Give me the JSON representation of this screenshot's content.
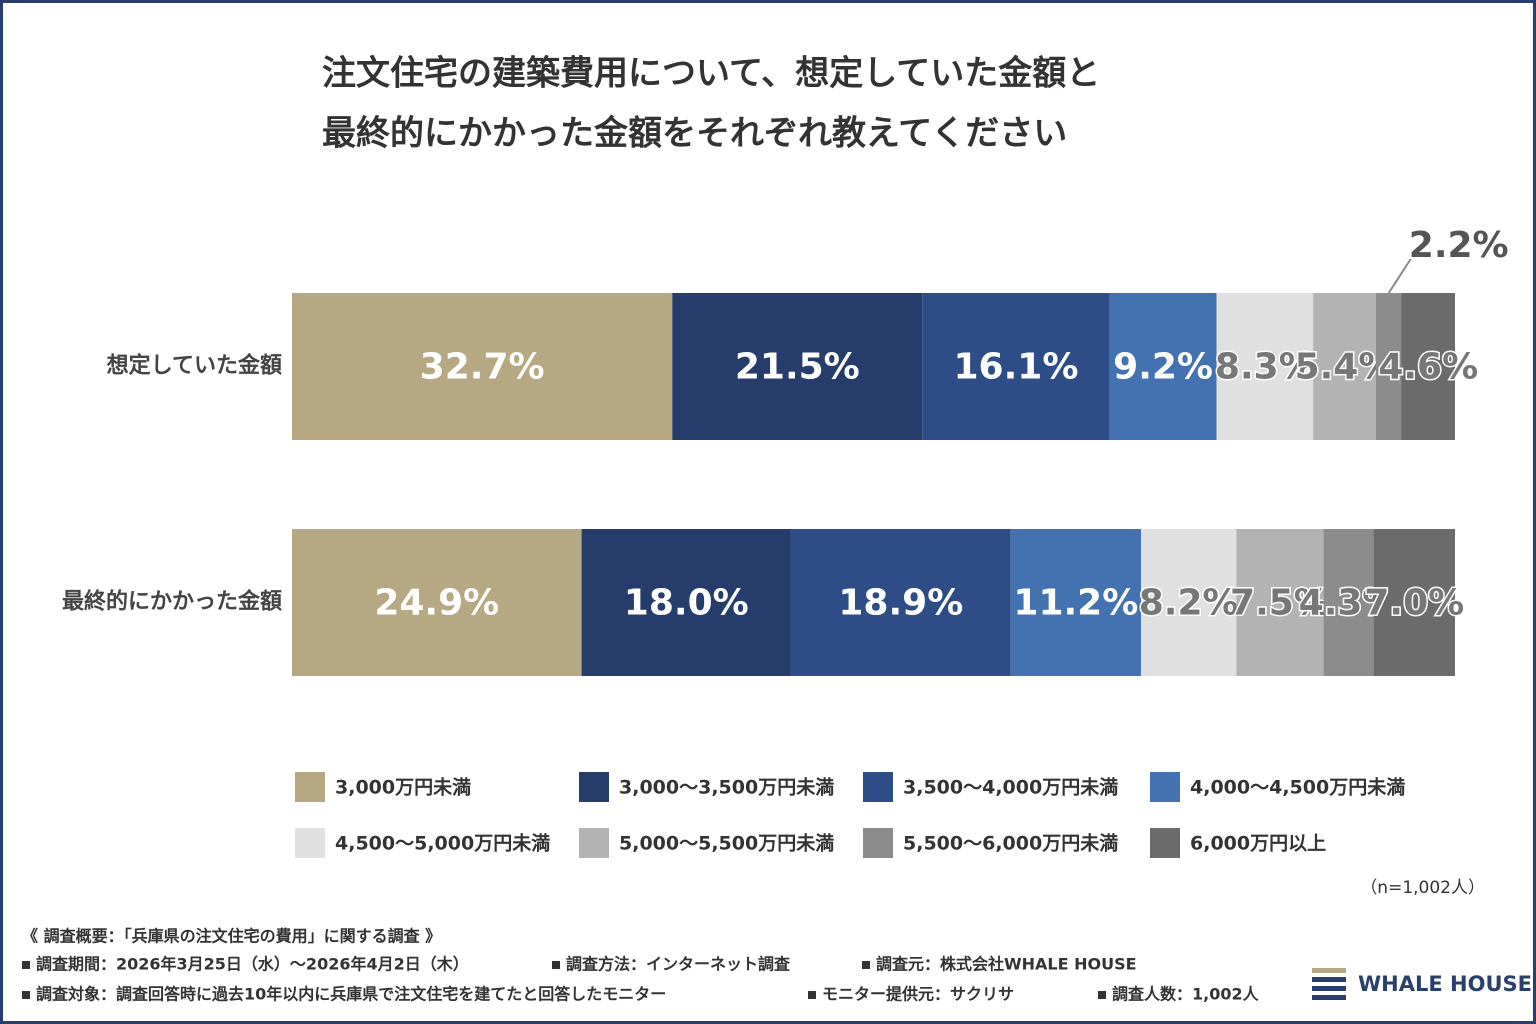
{
  "chart_data": {
    "type": "stacked-bar-horizontal",
    "title": [
      "注文住宅の建築費用について、想定していた金額と",
      "最終的にかかった金額をそれぞれ教えてください"
    ],
    "categories": [
      "想定していた金額",
      "最終的にかかった金額"
    ],
    "series": [
      {
        "name": "3,000万円未満",
        "color": "#b5a882",
        "values": [
          32.7,
          24.9
        ],
        "value_labels": [
          "32.7%",
          "24.9%"
        ]
      },
      {
        "name": "3,000～3,500万円未満",
        "color": "#263d6b",
        "values": [
          21.5,
          18.0
        ],
        "value_labels": [
          "21.5%",
          "18.0%"
        ]
      },
      {
        "name": "3,500～4,000万円未満",
        "color": "#2e4d87",
        "values": [
          16.1,
          18.9
        ],
        "value_labels": [
          "16.1%",
          "18.9%"
        ]
      },
      {
        "name": "4,000～4,500万円未満",
        "color": "#4472b0",
        "values": [
          9.2,
          11.2
        ],
        "value_labels": [
          "9.2%",
          "11.2%"
        ]
      },
      {
        "name": "4,500～5,000万円未満",
        "color": "#e0e0e0",
        "values": [
          8.3,
          8.2
        ],
        "value_labels": [
          "8.3%",
          "8.2%"
        ]
      },
      {
        "name": "5,000～5,500万円未満",
        "color": "#b3b3b3",
        "values": [
          5.4,
          7.5
        ],
        "value_labels": [
          "5.4%",
          "7.5%"
        ]
      },
      {
        "name": "5,500～6,000万円未満",
        "color": "#8c8c8c",
        "values": [
          2.2,
          4.3
        ],
        "value_labels": [
          "2.2%",
          "4.3%"
        ]
      },
      {
        "name": "6,000万円以上",
        "color": "#6b6b6b",
        "values": [
          4.6,
          7.0
        ],
        "value_labels": [
          "4.6%",
          "7.0%"
        ]
      }
    ],
    "sample_note": "（n=1,002人）",
    "survey": {
      "heading": "《 調査概要：「兵庫県の注文住宅の費用」に関する調査 》",
      "items": [
        "調査期間：2026年3月25日（水）～2026年4月2日（木）",
        "調査方法：インターネット調査",
        "調査元：株式会社WHALE HOUSE",
        "調査対象：調査回答時に過去10年以内に兵庫県で注文住宅を建てたと回答したモニター",
        "モニター提供元：サクリサ",
        "調査人数：1,002人"
      ]
    },
    "logo": "WHALE HOUSE"
  }
}
